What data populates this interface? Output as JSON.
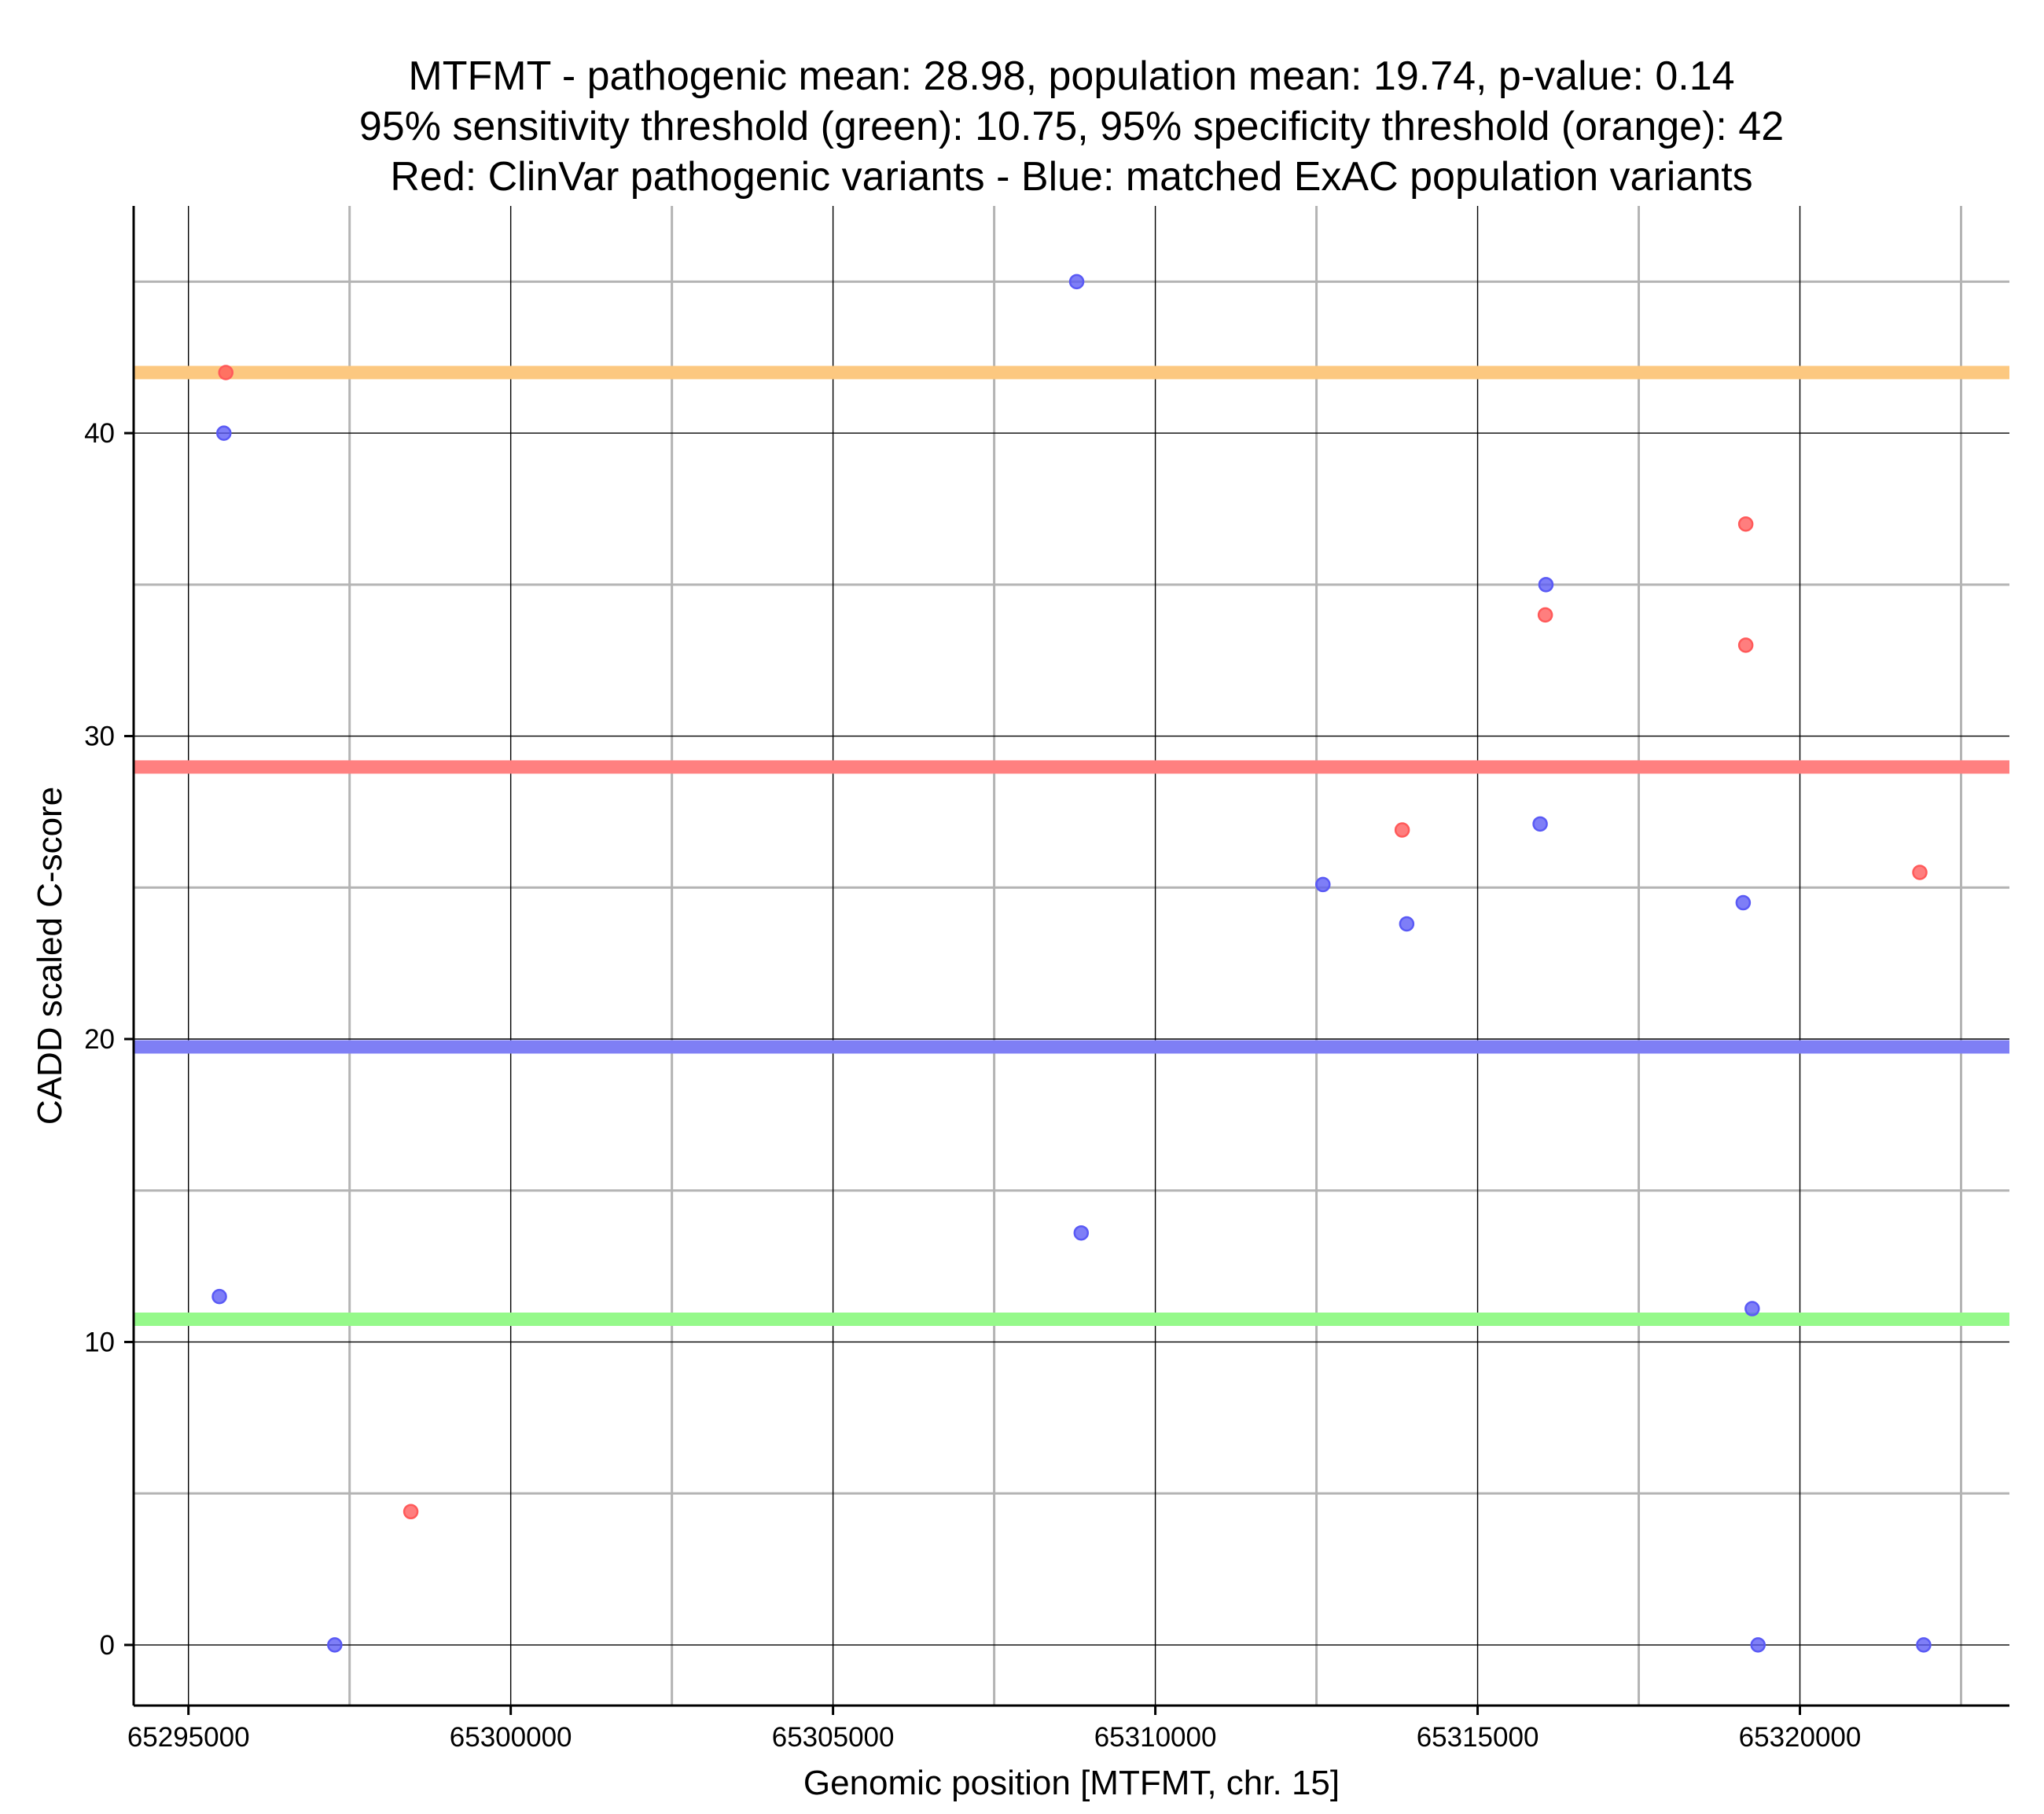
{
  "chart_data": {
    "type": "scatter",
    "title_lines": [
      "MTFMT - pathogenic mean: 28.98, population mean: 19.74, p-value: 0.14",
      "95% sensitivity threshold (green): 10.75, 95% specificity threshold (orange): 42",
      "Red: ClinVar pathogenic variants - Blue: matched ExAC population variants"
    ],
    "xlabel": "Genomic position [MTFMT, chr. 15]",
    "ylabel": "CADD scaled C-score",
    "xlim": [
      65294150,
      65323250
    ],
    "ylim": [
      -2,
      47.5
    ],
    "x_ticks": [
      65295000,
      65300000,
      65305000,
      65310000,
      65315000,
      65320000
    ],
    "x_tick_labels": [
      "65295000",
      "65300000",
      "65305000",
      "65310000",
      "65315000",
      "65320000"
    ],
    "x_minor_grid": [
      65297500,
      65302500,
      65307500,
      65312500,
      65317500,
      65322500
    ],
    "y_ticks": [
      0,
      10,
      20,
      30,
      40
    ],
    "y_tick_labels": [
      "0",
      "10",
      "20",
      "30",
      "40"
    ],
    "y_minor_grid": [
      5,
      15,
      25,
      35,
      45
    ],
    "grid": true,
    "threshold_lines": [
      {
        "name": "specificity-threshold",
        "label": "95% specificity threshold",
        "value": 42,
        "color": "#fcc880"
      },
      {
        "name": "pathogenic-mean",
        "label": "pathogenic mean",
        "value": 28.98,
        "color": "#ff8080"
      },
      {
        "name": "population-mean",
        "label": "population mean",
        "value": 19.74,
        "color": "#7f7ff5"
      },
      {
        "name": "sensitivity-threshold",
        "label": "95% sensitivity threshold",
        "value": 10.75,
        "color": "#95f98a"
      }
    ],
    "series": [
      {
        "name": "ClinVar pathogenic variants",
        "color": "#ff5a5a",
        "points": [
          {
            "x": 65295580,
            "y": 42
          },
          {
            "x": 65298450,
            "y": 4.4
          },
          {
            "x": 65313830,
            "y": 26.9
          },
          {
            "x": 65316050,
            "y": 34
          },
          {
            "x": 65319160,
            "y": 37
          },
          {
            "x": 65319160,
            "y": 33
          },
          {
            "x": 65321860,
            "y": 25.5
          }
        ]
      },
      {
        "name": "matched ExAC population variants",
        "color": "#5a5af5",
        "points": [
          {
            "x": 65295550,
            "y": 40
          },
          {
            "x": 65295480,
            "y": 11.5
          },
          {
            "x": 65297270,
            "y": 0
          },
          {
            "x": 65308780,
            "y": 45
          },
          {
            "x": 65308850,
            "y": 13.6
          },
          {
            "x": 65312600,
            "y": 25.1
          },
          {
            "x": 65313900,
            "y": 23.8
          },
          {
            "x": 65315970,
            "y": 27.1
          },
          {
            "x": 65316060,
            "y": 35
          },
          {
            "x": 65319120,
            "y": 24.5
          },
          {
            "x": 65319260,
            "y": 11.1
          },
          {
            "x": 65319350,
            "y": 0
          },
          {
            "x": 65321920,
            "y": 0
          }
        ]
      }
    ]
  }
}
